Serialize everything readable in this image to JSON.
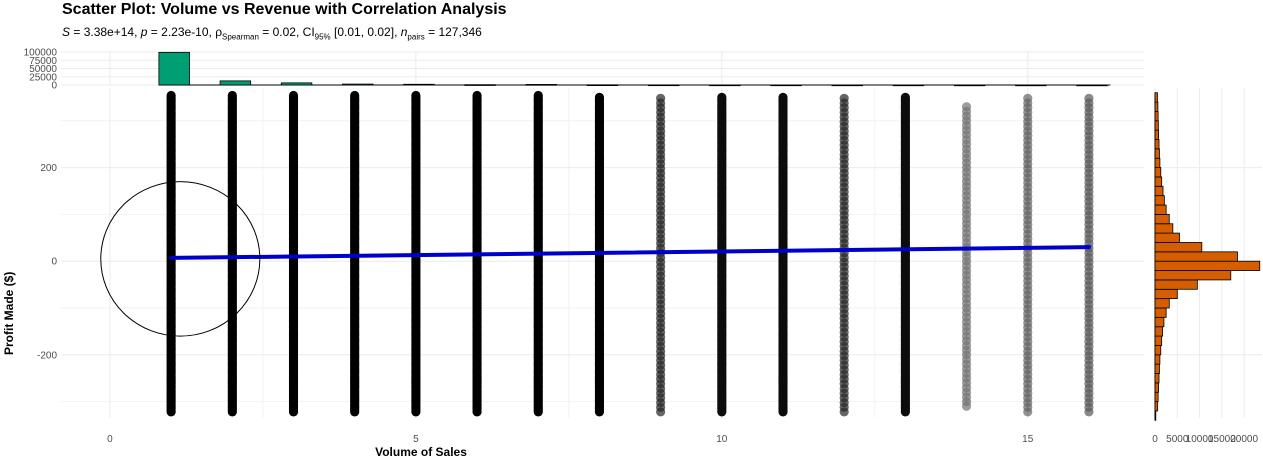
{
  "title": "Scatter Plot: Volume vs Revenue with Correlation Analysis",
  "subtitle": {
    "S": "3.38e+14",
    "p": "2.23e-10",
    "rho_label": "ρ",
    "rho_sub": "Spearman",
    "rho": "0.02",
    "ci_label": "CI",
    "ci_sub": "95%",
    "ci": "[0.01, 0.02]",
    "n_label": "n",
    "n_sub": "pairs",
    "n": "127,346"
  },
  "colors": {
    "points": "#000000",
    "trend": "#0000cc",
    "top_histogram_fill": "#009e73",
    "side_histogram_fill": "#d55e00",
    "grid": "#ebebeb"
  },
  "chart_data": [
    {
      "type": "scatter",
      "title": "Scatter Plot: Volume vs Revenue with Correlation Analysis",
      "xlabel": "Volume of Sales",
      "ylabel": "Profit Made ($)",
      "xlim": [
        -0.8,
        16.9
      ],
      "ylim": [
        -335,
        370
      ],
      "x_ticks": [
        0,
        5,
        10,
        15
      ],
      "y_ticks": [
        -200,
        0,
        200
      ],
      "grid": true,
      "point_columns": [
        {
          "x": 1,
          "ymin": -322,
          "ymax": 355,
          "opacity": 1.0
        },
        {
          "x": 2,
          "ymin": -322,
          "ymax": 355,
          "opacity": 1.0
        },
        {
          "x": 3,
          "ymin": -322,
          "ymax": 355,
          "opacity": 1.0
        },
        {
          "x": 4,
          "ymin": -322,
          "ymax": 355,
          "opacity": 1.0
        },
        {
          "x": 5,
          "ymin": -322,
          "ymax": 355,
          "opacity": 1.0
        },
        {
          "x": 6,
          "ymin": -322,
          "ymax": 355,
          "opacity": 1.0
        },
        {
          "x": 7,
          "ymin": -322,
          "ymax": 355,
          "opacity": 1.0
        },
        {
          "x": 8,
          "ymin": -322,
          "ymax": 352,
          "opacity": 1.0
        },
        {
          "x": 9,
          "ymin": -322,
          "ymax": 355,
          "opacity": 0.85
        },
        {
          "x": 10,
          "ymin": -322,
          "ymax": 352,
          "opacity": 0.95
        },
        {
          "x": 11,
          "ymin": -322,
          "ymax": 352,
          "opacity": 0.95
        },
        {
          "x": 12,
          "ymin": -322,
          "ymax": 355,
          "opacity": 0.85
        },
        {
          "x": 13,
          "ymin": -322,
          "ymax": 352,
          "opacity": 0.95
        },
        {
          "x": 14,
          "ymin": -310,
          "ymax": 335,
          "opacity": 0.55
        },
        {
          "x": 15,
          "ymin": -322,
          "ymax": 355,
          "opacity": 0.6
        },
        {
          "x": 16,
          "ymin": -322,
          "ymax": 355,
          "opacity": 0.65
        }
      ],
      "trend_line": {
        "x": [
          1,
          16
        ],
        "y": [
          7,
          30
        ]
      },
      "ellipse": {
        "cx": 1.15,
        "cy": 5,
        "rx": 1.3,
        "ry": 165
      }
    },
    {
      "type": "bar",
      "title": "",
      "xlabel": "",
      "ylabel": "",
      "ylim": [
        0,
        100000
      ],
      "y_ticks": [
        0,
        25000,
        50000,
        75000,
        100000
      ],
      "bins": [
        {
          "x0": 0.8,
          "x1": 1.3,
          "count": 99000
        },
        {
          "x0": 1.8,
          "x1": 2.3,
          "count": 12500
        },
        {
          "x0": 2.8,
          "x1": 3.3,
          "count": 6500
        },
        {
          "x0": 3.8,
          "x1": 4.3,
          "count": 2800
        },
        {
          "x0": 4.8,
          "x1": 5.3,
          "count": 2200
        },
        {
          "x0": 5.8,
          "x1": 6.3,
          "count": 1000
        },
        {
          "x0": 6.8,
          "x1": 7.3,
          "count": 1700
        },
        {
          "x0": 7.8,
          "x1": 8.3,
          "count": 600
        },
        {
          "x0": 8.8,
          "x1": 9.3,
          "count": 400
        },
        {
          "x0": 9.8,
          "x1": 10.3,
          "count": 300
        },
        {
          "x0": 10.8,
          "x1": 11.3,
          "count": 250
        },
        {
          "x0": 11.8,
          "x1": 12.3,
          "count": 200
        },
        {
          "x0": 12.8,
          "x1": 13.3,
          "count": 150
        },
        {
          "x0": 13.8,
          "x1": 14.3,
          "count": 100
        },
        {
          "x0": 14.8,
          "x1": 15.3,
          "count": 100
        },
        {
          "x0": 15.8,
          "x1": 16.3,
          "count": 80
        }
      ]
    },
    {
      "type": "bar",
      "title": "",
      "xlabel": "",
      "ylabel": "",
      "xlim": [
        0,
        24000
      ],
      "x_ticks": [
        0,
        5000,
        10000,
        15000,
        20000
      ],
      "bin_width": 20,
      "bins": [
        {
          "y0": -340,
          "count": 100
        },
        {
          "y0": -320,
          "count": 600
        },
        {
          "y0": -300,
          "count": 700
        },
        {
          "y0": -280,
          "count": 800
        },
        {
          "y0": -260,
          "count": 900
        },
        {
          "y0": -240,
          "count": 1000
        },
        {
          "y0": -220,
          "count": 1100
        },
        {
          "y0": -200,
          "count": 1300
        },
        {
          "y0": -180,
          "count": 1500
        },
        {
          "y0": -160,
          "count": 1700
        },
        {
          "y0": -140,
          "count": 2000
        },
        {
          "y0": -120,
          "count": 2500
        },
        {
          "y0": -100,
          "count": 3200
        },
        {
          "y0": -80,
          "count": 5000
        },
        {
          "y0": -60,
          "count": 9500
        },
        {
          "y0": -40,
          "count": 17000
        },
        {
          "y0": -20,
          "count": 23500
        },
        {
          "y0": 0,
          "count": 18500
        },
        {
          "y0": 20,
          "count": 10500
        },
        {
          "y0": 40,
          "count": 5500
        },
        {
          "y0": 60,
          "count": 4000
        },
        {
          "y0": 80,
          "count": 3200
        },
        {
          "y0": 100,
          "count": 2500
        },
        {
          "y0": 120,
          "count": 2100
        },
        {
          "y0": 140,
          "count": 1800
        },
        {
          "y0": 160,
          "count": 1500
        },
        {
          "y0": 180,
          "count": 1300
        },
        {
          "y0": 200,
          "count": 1100
        },
        {
          "y0": 220,
          "count": 1000
        },
        {
          "y0": 240,
          "count": 900
        },
        {
          "y0": 260,
          "count": 800
        },
        {
          "y0": 280,
          "count": 750
        },
        {
          "y0": 300,
          "count": 700
        },
        {
          "y0": 320,
          "count": 650
        },
        {
          "y0": 340,
          "count": 550
        }
      ]
    }
  ]
}
